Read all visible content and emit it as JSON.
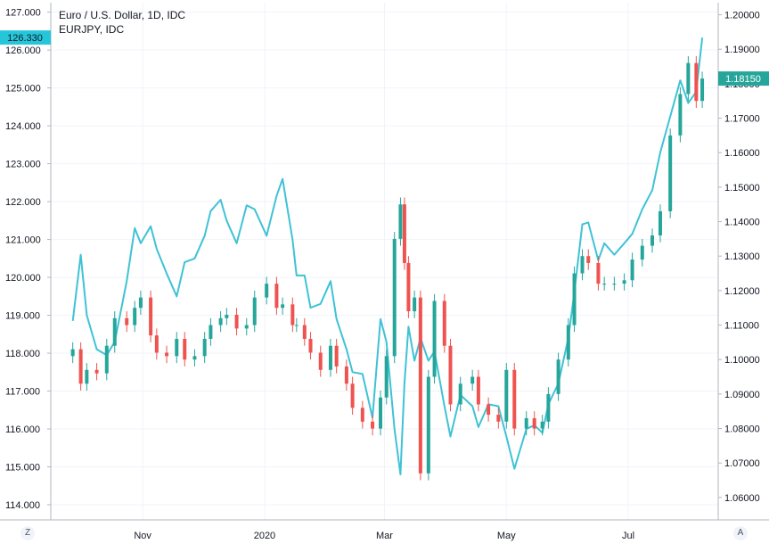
{
  "chart_data": {
    "type": "line",
    "title": "Euro / U.S. Dollar, 1D, IDC",
    "subtitle": "EURJPY, IDC",
    "x_ticks": [
      "Nov",
      "2020",
      "Mar",
      "May",
      "Jul"
    ],
    "left_axis": {
      "ticks": [
        "114.000",
        "115.000",
        "116.000",
        "117.000",
        "118.000",
        "119.000",
        "120.000",
        "121.000",
        "122.000",
        "123.000",
        "124.000",
        "125.000",
        "126.000",
        "127.000"
      ],
      "ylim": [
        113.6,
        127.25
      ],
      "current_label": "126.330",
      "current_value": 126.33,
      "current_color": "#26c6da"
    },
    "right_axis": {
      "ticks": [
        "1.06000",
        "1.07000",
        "1.08000",
        "1.09000",
        "1.10000",
        "1.11000",
        "1.12000",
        "1.13000",
        "1.14000",
        "1.15000",
        "1.16000",
        "1.17000",
        "1.18000",
        "1.19000",
        "1.20000"
      ],
      "ylim": [
        1.0535,
        1.2035
      ],
      "current_label": "1.18150",
      "current_value": 1.1815,
      "current_color": "#26a69a"
    },
    "series": [
      {
        "name": "EURJPY, IDC",
        "kind": "line",
        "axis": "left",
        "color": "#3fc2d6",
        "x": [
          "2019-09-27",
          "2019-10-01",
          "2019-10-04",
          "2019-10-09",
          "2019-10-14",
          "2019-10-18",
          "2019-10-24",
          "2019-10-28",
          "2019-10-31",
          "2019-11-05",
          "2019-11-08",
          "2019-11-13",
          "2019-11-18",
          "2019-11-22",
          "2019-11-27",
          "2019-12-02",
          "2019-12-05",
          "2019-12-10",
          "2019-12-13",
          "2019-12-18",
          "2019-12-23",
          "2019-12-27",
          "2020-01-02",
          "2020-01-07",
          "2020-01-10",
          "2020-01-15",
          "2020-01-17",
          "2020-01-21",
          "2020-01-24",
          "2020-01-29",
          "2020-02-03",
          "2020-02-06",
          "2020-02-11",
          "2020-02-14",
          "2020-02-19",
          "2020-02-24",
          "2020-02-28",
          "2020-03-02",
          "2020-03-06",
          "2020-03-09",
          "2020-03-11",
          "2020-03-13",
          "2020-03-16",
          "2020-03-19",
          "2020-03-23",
          "2020-03-26",
          "2020-03-31",
          "2020-04-03",
          "2020-04-08",
          "2020-04-14",
          "2020-04-17",
          "2020-04-22",
          "2020-04-27",
          "2020-05-01",
          "2020-05-05",
          "2020-05-11",
          "2020-05-15",
          "2020-05-19",
          "2020-05-22",
          "2020-05-27",
          "2020-06-01",
          "2020-06-04",
          "2020-06-08",
          "2020-06-11",
          "2020-06-16",
          "2020-06-19",
          "2020-06-24",
          "2020-06-29",
          "2020-07-03",
          "2020-07-08",
          "2020-07-13",
          "2020-07-17",
          "2020-07-22",
          "2020-07-27",
          "2020-07-31",
          "2020-08-04",
          "2020-08-07"
        ],
        "values": [
          118.85,
          120.6,
          119.0,
          118.1,
          117.95,
          118.3,
          119.9,
          121.3,
          120.9,
          121.35,
          120.75,
          120.1,
          119.5,
          120.4,
          120.5,
          121.1,
          121.75,
          122.05,
          121.5,
          120.9,
          121.9,
          121.8,
          121.1,
          122.15,
          122.6,
          121.0,
          120.05,
          120.05,
          119.2,
          119.3,
          119.9,
          118.9,
          118.1,
          117.5,
          117.45,
          116.3,
          118.9,
          118.3,
          116.0,
          114.8,
          117.2,
          118.7,
          117.8,
          118.4,
          117.8,
          118.05,
          116.6,
          115.8,
          116.9,
          116.6,
          116.05,
          116.65,
          116.6,
          115.8,
          114.95,
          116.0,
          116.1,
          115.9,
          116.65,
          117.2,
          118.4,
          119.6,
          121.4,
          121.45,
          120.45,
          120.9,
          120.6,
          120.9,
          121.15,
          121.8,
          122.3,
          123.3,
          124.25,
          125.2,
          124.6,
          124.9,
          126.33
        ]
      },
      {
        "name": "Euro / U.S. Dollar",
        "kind": "candlestick",
        "axis": "right",
        "up_color": "#26a69a",
        "down_color": "#ef5350",
        "x": [
          "2019-09-27",
          "2019-10-01",
          "2019-10-04",
          "2019-10-09",
          "2019-10-14",
          "2019-10-18",
          "2019-10-24",
          "2019-10-28",
          "2019-10-31",
          "2019-11-05",
          "2019-11-08",
          "2019-11-13",
          "2019-11-18",
          "2019-11-22",
          "2019-11-27",
          "2019-12-02",
          "2019-12-05",
          "2019-12-10",
          "2019-12-13",
          "2019-12-18",
          "2019-12-23",
          "2019-12-27",
          "2020-01-02",
          "2020-01-07",
          "2020-01-10",
          "2020-01-15",
          "2020-01-17",
          "2020-01-21",
          "2020-01-24",
          "2020-01-29",
          "2020-02-03",
          "2020-02-06",
          "2020-02-11",
          "2020-02-14",
          "2020-02-19",
          "2020-02-24",
          "2020-02-28",
          "2020-03-02",
          "2020-03-06",
          "2020-03-09",
          "2020-03-11",
          "2020-03-13",
          "2020-03-16",
          "2020-03-19",
          "2020-03-23",
          "2020-03-26",
          "2020-03-31",
          "2020-04-03",
          "2020-04-08",
          "2020-04-14",
          "2020-04-17",
          "2020-04-22",
          "2020-04-27",
          "2020-05-01",
          "2020-05-05",
          "2020-05-11",
          "2020-05-15",
          "2020-05-19",
          "2020-05-22",
          "2020-05-27",
          "2020-06-01",
          "2020-06-04",
          "2020-06-08",
          "2020-06-11",
          "2020-06-16",
          "2020-06-19",
          "2020-06-24",
          "2020-06-29",
          "2020-07-03",
          "2020-07-08",
          "2020-07-13",
          "2020-07-17",
          "2020-07-22",
          "2020-07-27",
          "2020-07-31",
          "2020-08-04",
          "2020-08-07"
        ],
        "close": [
          1.103,
          1.093,
          1.097,
          1.096,
          1.104,
          1.112,
          1.11,
          1.115,
          1.118,
          1.107,
          1.102,
          1.101,
          1.106,
          1.1,
          1.101,
          1.106,
          1.11,
          1.112,
          1.113,
          1.109,
          1.11,
          1.118,
          1.122,
          1.115,
          1.116,
          1.11,
          1.11,
          1.106,
          1.102,
          1.097,
          1.104,
          1.098,
          1.093,
          1.086,
          1.082,
          1.08,
          1.089,
          1.101,
          1.135,
          1.145,
          1.128,
          1.114,
          1.118,
          1.067,
          1.095,
          1.117,
          1.104,
          1.087,
          1.093,
          1.095,
          1.087,
          1.084,
          1.082,
          1.097,
          1.08,
          1.083,
          1.08,
          1.082,
          1.09,
          1.1,
          1.11,
          1.125,
          1.13,
          1.128,
          1.122,
          1.122,
          1.122,
          1.123,
          1.129,
          1.133,
          1.136,
          1.143,
          1.165,
          1.177,
          1.186,
          1.175,
          1.1815
        ]
      }
    ]
  },
  "buttons": {
    "left_label": "Z",
    "right_label": "A"
  }
}
